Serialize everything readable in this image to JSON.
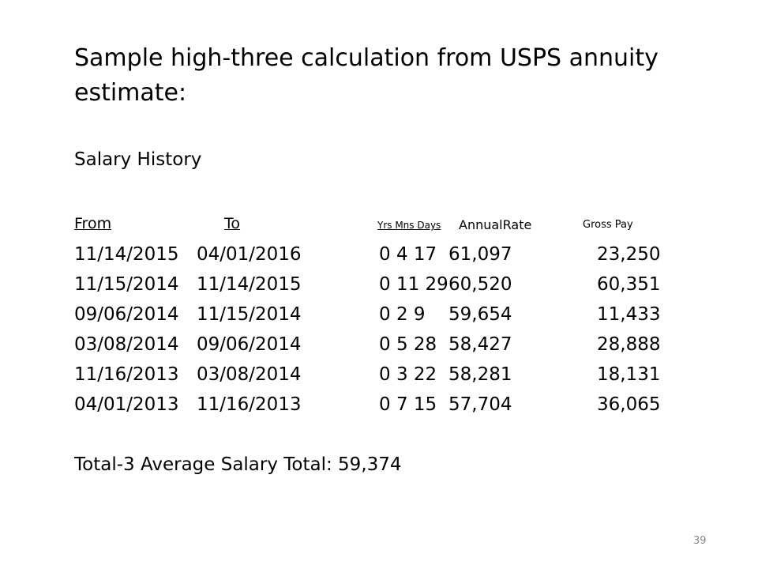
{
  "title": "Sample high-three calculation from USPS annuity estimate:",
  "subtitle": "Salary History",
  "headers": {
    "from": "From",
    "to": "To",
    "ymd": "Yrs Mns Days",
    "rate": "AnnualRate",
    "gross": "Gross Pay"
  },
  "rows": [
    {
      "from": "11/14/2015",
      "to": "04/01/2016",
      "ymd": "0 4 17",
      "rate": "61,097",
      "gross": "23,250"
    },
    {
      "from": "11/15/2014",
      "to": "11/14/2015",
      "ymd": "0 11 29",
      "rate": "60,520",
      "gross": "60,351"
    },
    {
      "from": "09/06/2014",
      "to": "11/15/2014",
      "ymd": "0 2 9",
      "rate": "59,654",
      "gross": "11,433"
    },
    {
      "from": "03/08/2014",
      "to": "09/06/2014",
      "ymd": "0 5 28",
      "rate": "58,427",
      "gross": "28,888"
    },
    {
      "from": "11/16/2013",
      "to": "03/08/2014",
      "ymd": "0 3 22",
      "rate": "58,281",
      "gross": "18,131"
    },
    {
      "from": "04/01/2013",
      "to": "11/16/2013",
      "ymd": "0 7 15",
      "rate": "57,704",
      "gross": "36,065"
    }
  ],
  "total": "Total-3 Average Salary Total: 59,374",
  "page_number": "39"
}
